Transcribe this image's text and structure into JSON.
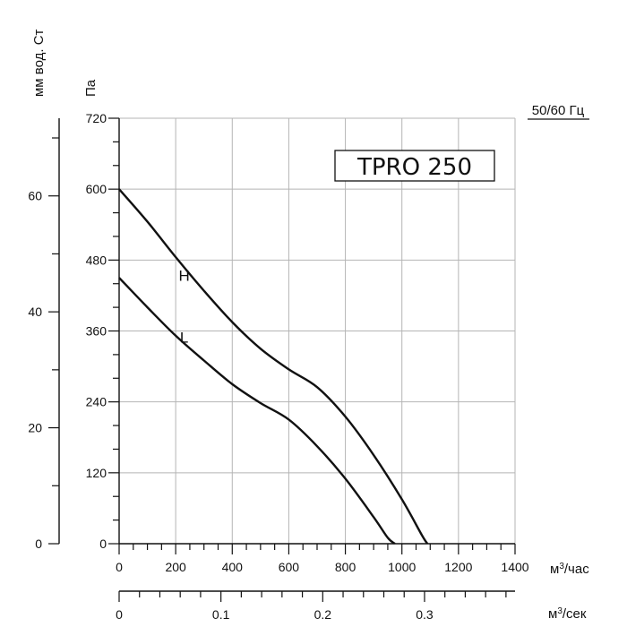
{
  "chart_data": {
    "type": "line",
    "title": "TPRO 250",
    "frequency_label": "50/60 Гц",
    "x": {
      "label": "м³/час",
      "label_base": "м",
      "label_sup": "3",
      "label_unit": "/час",
      "range": [
        0,
        1400
      ],
      "ticks": [
        0,
        200,
        400,
        600,
        800,
        1000,
        1200,
        1400
      ],
      "tick_labels": [
        "0",
        "200",
        "400",
        "600",
        "800",
        "1000",
        "1200",
        "1400"
      ],
      "minor_step": 50
    },
    "x2": {
      "label": "м³/сек",
      "label_base": "м",
      "label_sup": "3",
      "label_unit": "/сек",
      "range_m3s": [
        0,
        0.3889
      ],
      "ticks": [
        0,
        0.1,
        0.2,
        0.3
      ],
      "tick_labels": [
        "0",
        "0.1",
        "0.2",
        "0.3"
      ],
      "minor_step": 0.02
    },
    "y": {
      "label": "Па",
      "range": [
        0,
        720
      ],
      "ticks": [
        0,
        120,
        240,
        360,
        480,
        600,
        720
      ],
      "tick_labels": [
        "0",
        "120",
        "240",
        "360",
        "480",
        "600",
        "720"
      ],
      "minor_step": 40
    },
    "y2": {
      "label": "мм вод. Ст",
      "range": [
        0,
        73.4
      ],
      "ticks": [
        0,
        20,
        40,
        60
      ],
      "tick_labels": [
        "0",
        "20",
        "40",
        "60"
      ],
      "minor_step": 10
    },
    "series": [
      {
        "name": "H",
        "points": [
          [
            0,
            600
          ],
          [
            100,
            545
          ],
          [
            200,
            485
          ],
          [
            300,
            428
          ],
          [
            400,
            375
          ],
          [
            500,
            330
          ],
          [
            600,
            295
          ],
          [
            700,
            265
          ],
          [
            800,
            215
          ],
          [
            900,
            150
          ],
          [
            1000,
            75
          ],
          [
            1070,
            15
          ],
          [
            1090,
            0
          ]
        ]
      },
      {
        "name": "L",
        "points": [
          [
            0,
            450
          ],
          [
            100,
            400
          ],
          [
            200,
            352
          ],
          [
            300,
            310
          ],
          [
            400,
            270
          ],
          [
            500,
            238
          ],
          [
            600,
            210
          ],
          [
            700,
            165
          ],
          [
            800,
            110
          ],
          [
            900,
            45
          ],
          [
            950,
            10
          ],
          [
            975,
            0
          ]
        ]
      }
    ]
  }
}
